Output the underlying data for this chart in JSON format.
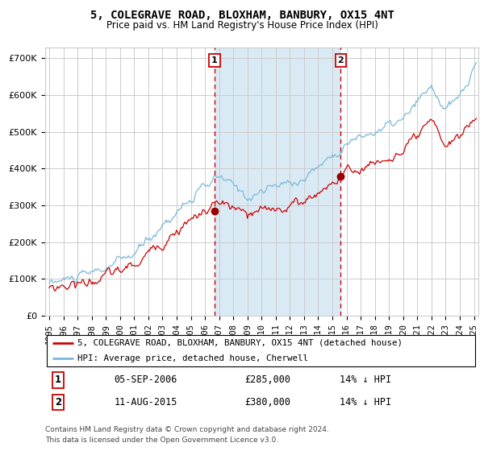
{
  "title": "5, COLEGRAVE ROAD, BLOXHAM, BANBURY, OX15 4NT",
  "subtitle": "Price paid vs. HM Land Registry's House Price Index (HPI)",
  "title_fontsize": 10,
  "subtitle_fontsize": 8.5,
  "ylabel_ticks": [
    "£0",
    "£100K",
    "£200K",
    "£300K",
    "£400K",
    "£500K",
    "£600K",
    "£700K"
  ],
  "ytick_values": [
    0,
    100000,
    200000,
    300000,
    400000,
    500000,
    600000,
    700000
  ],
  "ylim": [
    0,
    730000
  ],
  "xlim_start": 1994.7,
  "xlim_end": 2025.3,
  "xtick_years": [
    1995,
    1996,
    1997,
    1998,
    1999,
    2000,
    2001,
    2002,
    2003,
    2004,
    2005,
    2006,
    2007,
    2008,
    2009,
    2010,
    2011,
    2012,
    2013,
    2014,
    2015,
    2016,
    2017,
    2018,
    2019,
    2020,
    2021,
    2022,
    2023,
    2024,
    2025
  ],
  "purchase1_x": 2006.67,
  "purchase1_y": 285000,
  "purchase1_label": "05-SEP-2006",
  "purchase1_price": "£285,000",
  "purchase1_hpi": "14% ↓ HPI",
  "purchase2_x": 2015.58,
  "purchase2_y": 380000,
  "purchase2_label": "11-AUG-2015",
  "purchase2_price": "£380,000",
  "purchase2_hpi": "14% ↓ HPI",
  "legend_line1": "5, COLEGRAVE ROAD, BLOXHAM, BANBURY, OX15 4NT (detached house)",
  "legend_line2": "HPI: Average price, detached house, Cherwell",
  "footer_line1": "Contains HM Land Registry data © Crown copyright and database right 2024.",
  "footer_line2": "This data is licensed under the Open Government Licence v3.0.",
  "hpi_color": "#7ab8d9",
  "price_color": "#cc0000",
  "vline_color": "#cc0000",
  "bg_shaded_color": "#daeaf5",
  "marker_color": "#990000",
  "number_box_color": "#cc0000",
  "grid_color": "#cccccc",
  "hpi_seed": 10,
  "price_seed": 20
}
